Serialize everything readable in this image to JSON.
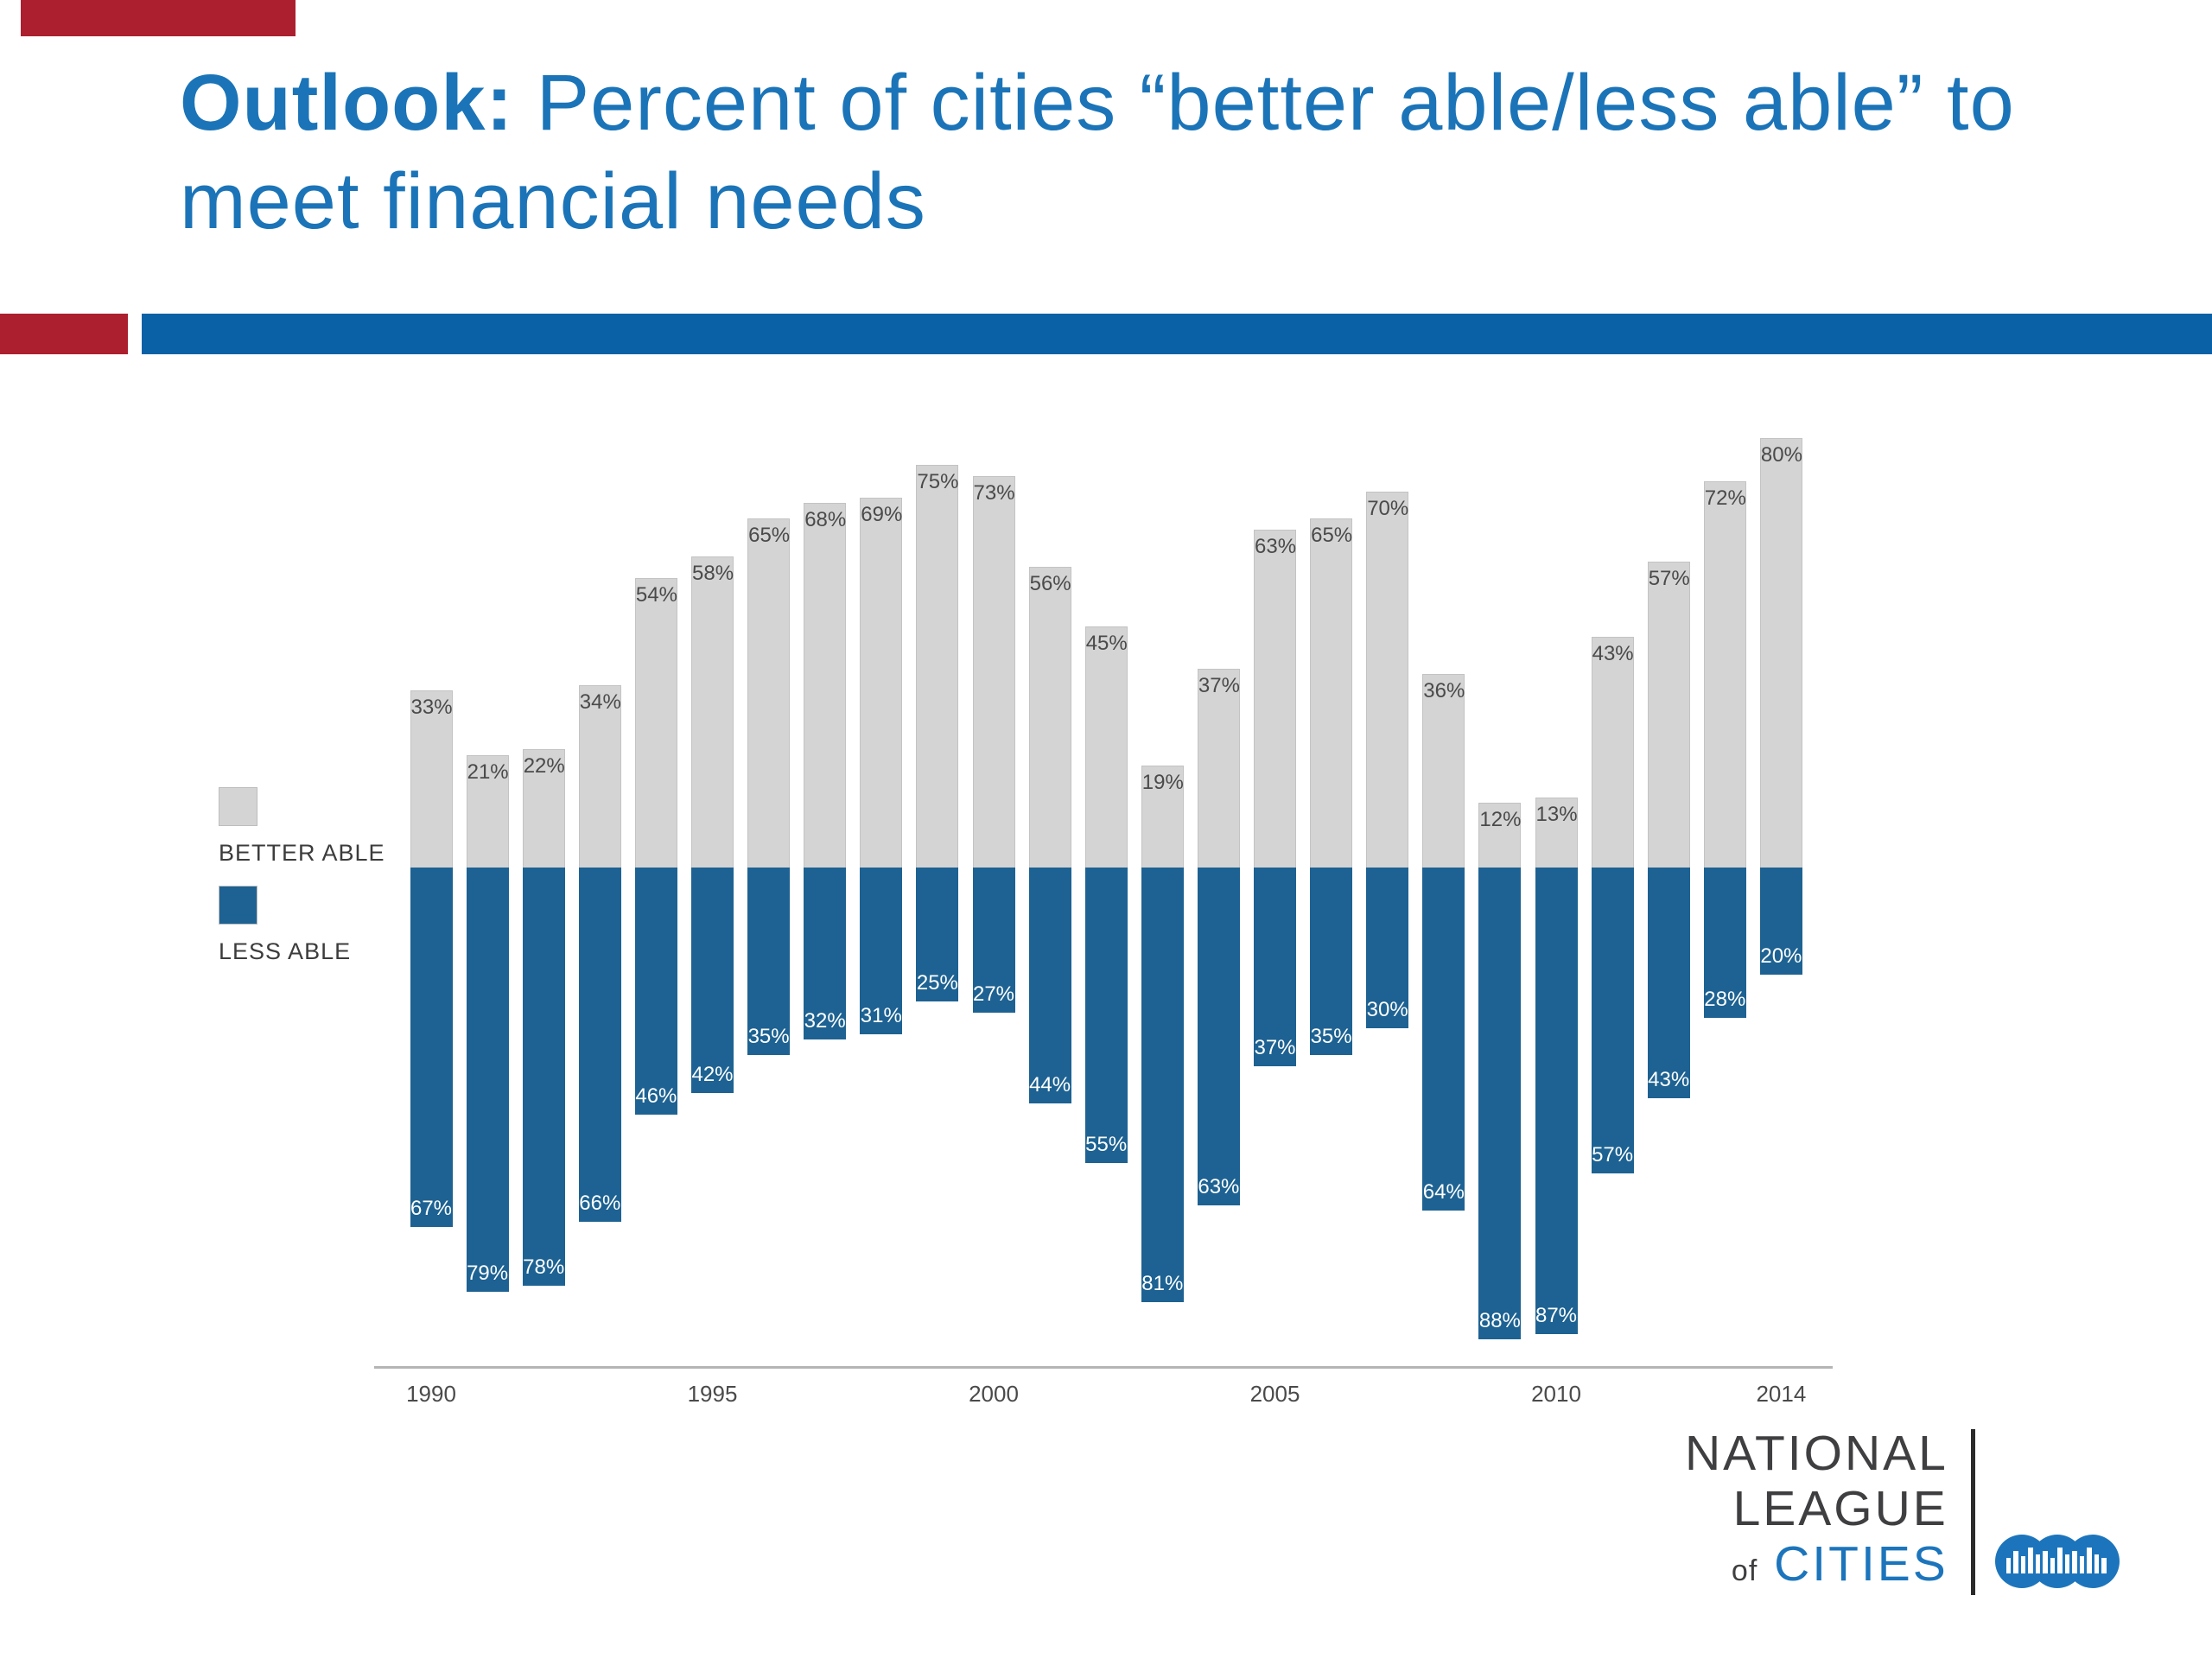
{
  "slide": {
    "title_bold": "Outlook:",
    "title_rest": " Percent of cities “better able/less able” to meet financial needs",
    "accent_red": "#ab1f2f",
    "accent_blue": "#0a61a6"
  },
  "legend": {
    "better_able": "BETTER ABLE",
    "less_able": "LESS ABLE"
  },
  "chart_data": {
    "type": "bar",
    "subtype": "diverging-stacked",
    "title": "Outlook: Percent of cities “better able/less able” to meet financial needs",
    "categories": [
      "1990",
      "1991",
      "1992",
      "1993",
      "1994",
      "1995",
      "1996",
      "1997",
      "1998",
      "1999",
      "2000",
      "2001",
      "2002",
      "2003",
      "2004",
      "2005",
      "2006",
      "2007",
      "2008",
      "2009",
      "2010",
      "2011",
      "2012",
      "2013",
      "2014"
    ],
    "series": [
      {
        "name": "BETTER ABLE",
        "direction": "up",
        "color": "#d4d4d4",
        "label_color": "#4a4a4a",
        "values": [
          33,
          21,
          22,
          34,
          54,
          58,
          65,
          68,
          69,
          75,
          73,
          56,
          45,
          19,
          37,
          63,
          65,
          70,
          36,
          12,
          13,
          43,
          57,
          72,
          80
        ]
      },
      {
        "name": "LESS ABLE",
        "direction": "down",
        "color": "#1d6292",
        "label_color": "#ffffff",
        "values": [
          67,
          79,
          78,
          66,
          46,
          42,
          35,
          32,
          31,
          25,
          27,
          44,
          55,
          81,
          63,
          37,
          35,
          30,
          64,
          88,
          87,
          57,
          43,
          28,
          20
        ]
      }
    ],
    "x_ticks": [
      "1990",
      "1995",
      "2000",
      "2005",
      "2010",
      "2014"
    ],
    "ylim": [
      -100,
      100
    ],
    "value_suffix": "%",
    "grid": "off",
    "legend_position": "left"
  },
  "logo": {
    "line1": "NATIONAL",
    "line2": "LEAGUE",
    "line3_small": "of",
    "line3_main": "CITIES",
    "icon_color": "#1c75bc"
  }
}
